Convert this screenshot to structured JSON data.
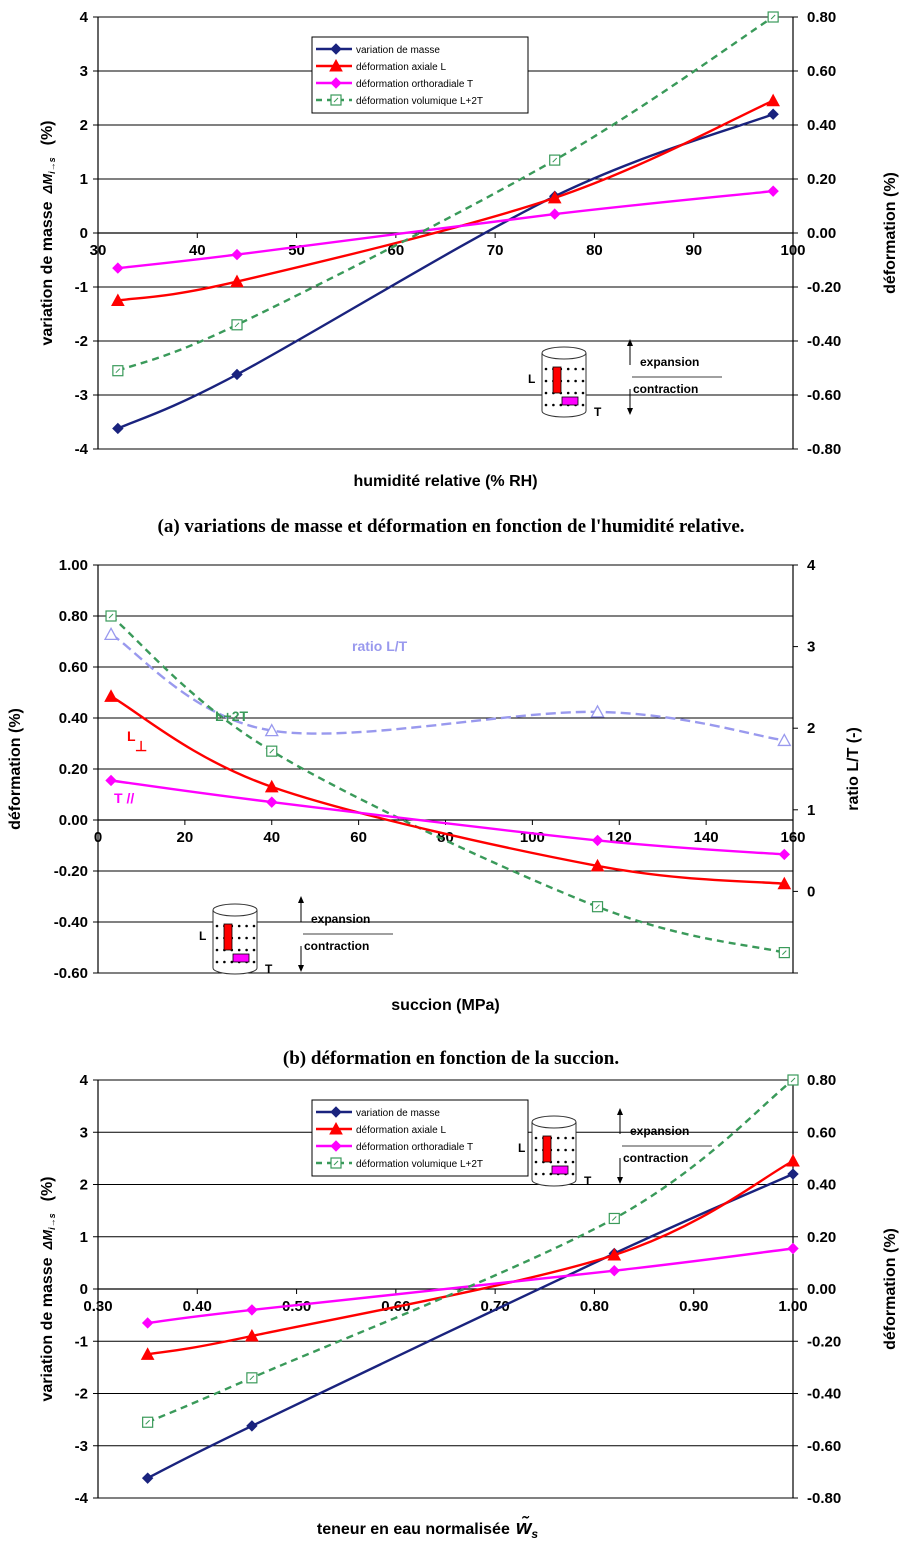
{
  "chart_data": [
    {
      "id": "a",
      "type": "line",
      "xlabel": "humidité relative (% RH)",
      "ylabel": "variation de masse",
      "ylabel_symbol": "ΔM",
      "ylabel_sub": "i→s",
      "ylabel_unit": "(%)",
      "y2label": "déformation (%)",
      "xlim": [
        30,
        100
      ],
      "xticks": [
        "30",
        "40",
        "50",
        "60",
        "70",
        "80",
        "90",
        "100"
      ],
      "ylim": [
        -4,
        4
      ],
      "yticks": [
        "-4",
        "-3",
        "-2",
        "-1",
        "0",
        "1",
        "2",
        "3",
        "4"
      ],
      "y2lim": [
        -0.8,
        0.8
      ],
      "y2ticks": [
        "-0.80",
        "-0.60",
        "-0.40",
        "-0.20",
        "0.00",
        "0.20",
        "0.40",
        "0.60",
        "0.80"
      ],
      "grid": "horizontal",
      "legend_position": "top-center",
      "series": [
        {
          "name": "variation de masse",
          "axis": "left",
          "color": "#1a237e",
          "marker": "diamond",
          "x": [
            32,
            44,
            76,
            98
          ],
          "y": [
            -3.62,
            -2.62,
            0.68,
            2.2
          ]
        },
        {
          "name": "déformation axiale L",
          "axis": "right",
          "color": "#ff0000",
          "marker": "triangle",
          "x": [
            32,
            44,
            76,
            98
          ],
          "y": [
            -0.25,
            -0.18,
            0.13,
            0.49
          ]
        },
        {
          "name": "déformation orthoradiale T",
          "axis": "right",
          "color": "#ff00ff",
          "marker": "diamond",
          "x": [
            32,
            44,
            76,
            98
          ],
          "y": [
            -0.13,
            -0.08,
            0.07,
            0.155
          ]
        },
        {
          "name": "déformation volumique L+2T",
          "axis": "right",
          "color": "#3a9a5a",
          "dashed": true,
          "marker": "square-open",
          "x": [
            32,
            44,
            76,
            98
          ],
          "y": [
            -0.51,
            -0.34,
            0.27,
            0.8
          ]
        }
      ],
      "inset": {
        "top_label": "expansion",
        "bottom_label": "contraction",
        "L": "L",
        "T": "T"
      }
    },
    {
      "id": "b",
      "type": "line",
      "xlabel": "succion (MPa)",
      "ylabel": "déformation (%)",
      "y2label": "ratio L/T (-)",
      "xlim": [
        0,
        160
      ],
      "xticks": [
        "0",
        "20",
        "40",
        "60",
        "80",
        "100",
        "120",
        "140",
        "160"
      ],
      "ylim": [
        -0.6,
        1.0
      ],
      "yticks": [
        "-0.60",
        "-0.40",
        "-0.20",
        "0.00",
        "0.20",
        "0.40",
        "0.60",
        "0.80",
        "1.00"
      ],
      "y2lim": [
        -1,
        4
      ],
      "y2ticks": [
        "0",
        "1",
        "2",
        "3",
        "4"
      ],
      "grid": "horizontal",
      "series": [
        {
          "name": "ratio L/T",
          "axis": "right",
          "color": "#9999ee",
          "dashed": true,
          "marker": "triangle-open",
          "x": [
            3,
            40,
            115,
            158
          ],
          "y": [
            3.15,
            1.97,
            2.2,
            1.85
          ]
        },
        {
          "name": "L+2T",
          "axis": "left",
          "color": "#3a9a5a",
          "dashed": true,
          "marker": "square-open",
          "x": [
            3,
            40,
            115,
            158
          ],
          "y": [
            0.8,
            0.27,
            -0.34,
            -0.52
          ]
        },
        {
          "name": "L",
          "axis": "left",
          "color": "#ff0000",
          "marker": "triangle",
          "x": [
            3,
            40,
            115,
            158
          ],
          "y": [
            0.485,
            0.13,
            -0.18,
            -0.25
          ]
        },
        {
          "name": "T",
          "axis": "left",
          "color": "#ff00ff",
          "marker": "diamond",
          "x": [
            3,
            40,
            115,
            158
          ],
          "y": [
            0.155,
            0.07,
            -0.08,
            -0.135
          ]
        }
      ],
      "curve_labels": {
        "ratio": "ratio L/T",
        "l2t": "L+2T",
        "L": "L",
        "Lsym": "⊥",
        "T": "T //"
      },
      "inset": {
        "top_label": "expansion",
        "bottom_label": "contraction",
        "L": "L",
        "T": "T"
      }
    },
    {
      "id": "c",
      "type": "line",
      "xlabel": "teneur en eau normalisée",
      "xlabel_symbol": "w̃",
      "xlabel_sub": "s",
      "ylabel": "variation de masse",
      "ylabel_symbol": "ΔM",
      "ylabel_sub": "i→s",
      "ylabel_unit": "(%)",
      "y2label": "déformation (%)",
      "xlim": [
        0.3,
        1.0
      ],
      "xticks": [
        "0.30",
        "0.40",
        "0.50",
        "0.60",
        "0.70",
        "0.80",
        "0.90",
        "1.00"
      ],
      "ylim": [
        -4,
        4
      ],
      "yticks": [
        "-4",
        "-3",
        "-2",
        "-1",
        "0",
        "1",
        "2",
        "3",
        "4"
      ],
      "y2lim": [
        -0.8,
        0.8
      ],
      "y2ticks": [
        "-0.80",
        "-0.60",
        "-0.40",
        "-0.20",
        "0.00",
        "0.20",
        "0.40",
        "0.60",
        "0.80"
      ],
      "grid": "horizontal",
      "legend_position": "top-center",
      "series": [
        {
          "name": "variation de masse",
          "axis": "left",
          "color": "#1a237e",
          "marker": "diamond",
          "x": [
            0.35,
            0.455,
            0.82,
            1.0
          ],
          "y": [
            -3.62,
            -2.62,
            0.68,
            2.2
          ]
        },
        {
          "name": "déformation axiale L",
          "axis": "right",
          "color": "#ff0000",
          "marker": "triangle",
          "x": [
            0.35,
            0.455,
            0.82,
            1.0
          ],
          "y": [
            -0.25,
            -0.18,
            0.13,
            0.49
          ]
        },
        {
          "name": "déformation orthoradiale T",
          "axis": "right",
          "color": "#ff00ff",
          "marker": "diamond",
          "x": [
            0.35,
            0.455,
            0.82,
            1.0
          ],
          "y": [
            -0.13,
            -0.08,
            0.07,
            0.155
          ]
        },
        {
          "name": "déformation volumique L+2T",
          "axis": "right",
          "color": "#3a9a5a",
          "dashed": true,
          "marker": "square-open",
          "x": [
            0.35,
            0.455,
            0.82,
            1.0
          ],
          "y": [
            -0.51,
            -0.34,
            0.27,
            0.8
          ]
        }
      ],
      "inset": {
        "top_label": "expansion",
        "bottom_label": "contraction",
        "L": "L",
        "T": "T"
      }
    }
  ],
  "captions": {
    "a": "(a) variations de masse et déformation en fonction de l'humidité relative.",
    "b": "(b) déformation en fonction de la succion."
  }
}
